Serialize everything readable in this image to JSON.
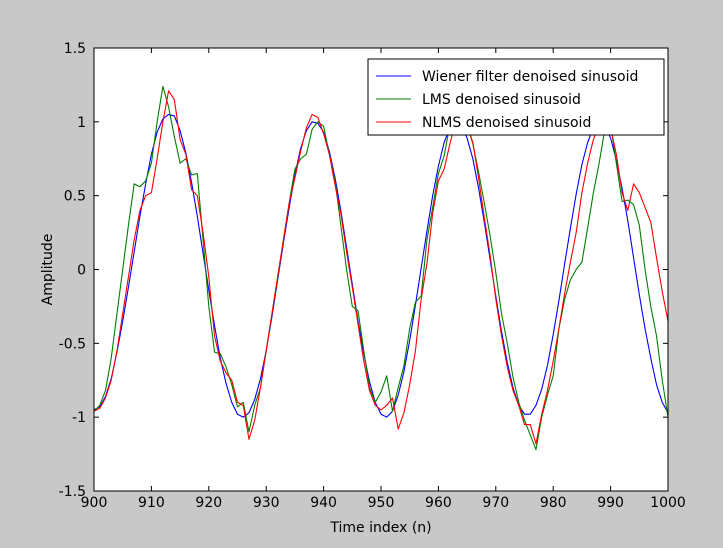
{
  "chart_data": {
    "type": "line",
    "title": "",
    "xlabel": "Time index (n)",
    "ylabel": "Amplitude",
    "xlim": [
      900,
      1000
    ],
    "ylim": [
      -1.5,
      1.5
    ],
    "xticks": [
      900,
      910,
      920,
      930,
      940,
      950,
      960,
      970,
      980,
      990,
      1000
    ],
    "xtick_labels": [
      "900",
      "910",
      "920",
      "930",
      "940",
      "950",
      "960",
      "970",
      "980",
      "990",
      "1000"
    ],
    "yticks": [
      -1.5,
      -1,
      -0.5,
      0,
      0.5,
      1,
      1.5
    ],
    "ytick_labels": [
      "-1.5",
      "-1",
      "-0.5",
      "0",
      "0.5",
      "1",
      "1.5"
    ],
    "grid": false,
    "legend_position": "top-right",
    "colors": {
      "figure_bg": "#c8c8c8",
      "axes_bg": "#ffffff"
    },
    "series": [
      {
        "name": "Wiener filter denoised sinusoid",
        "color": "#0000ff",
        "x": [
          900,
          901,
          902,
          903,
          904,
          905,
          906,
          907,
          908,
          909,
          910,
          911,
          912,
          913,
          914,
          915,
          916,
          917,
          918,
          919,
          920,
          921,
          922,
          923,
          924,
          925,
          926,
          927,
          928,
          929,
          930,
          931,
          932,
          933,
          934,
          935,
          936,
          937,
          938,
          939,
          940,
          941,
          942,
          943,
          944,
          945,
          946,
          947,
          948,
          949,
          950,
          951,
          952,
          953,
          954,
          955,
          956,
          957,
          958,
          959,
          960,
          961,
          962,
          963,
          964,
          965,
          966,
          967,
          968,
          969,
          970,
          971,
          972,
          973,
          974,
          975,
          976,
          977,
          978,
          979,
          980,
          981,
          982,
          983,
          984,
          985,
          986,
          987,
          988,
          989,
          990,
          991,
          992,
          993,
          994,
          995,
          996,
          997,
          998,
          999,
          1000
        ],
        "y": [
          -0.95,
          -0.93,
          -0.86,
          -0.74,
          -0.56,
          -0.35,
          -0.12,
          0.12,
          0.36,
          0.58,
          0.78,
          0.93,
          1.02,
          1.05,
          1.04,
          0.94,
          0.79,
          0.59,
          0.36,
          0.11,
          -0.14,
          -0.38,
          -0.6,
          -0.77,
          -0.9,
          -0.98,
          -1.0,
          -0.97,
          -0.88,
          -0.74,
          -0.55,
          -0.32,
          -0.07,
          0.18,
          0.42,
          0.64,
          0.82,
          0.94,
          1.0,
          0.99,
          0.93,
          0.8,
          0.62,
          0.4,
          0.15,
          -0.1,
          -0.35,
          -0.57,
          -0.76,
          -0.9,
          -0.98,
          -1.0,
          -0.96,
          -0.85,
          -0.69,
          -0.48,
          -0.24,
          0.01,
          0.26,
          0.5,
          0.7,
          0.86,
          0.96,
          1.0,
          0.98,
          0.89,
          0.75,
          0.55,
          0.32,
          0.07,
          -0.18,
          -0.42,
          -0.63,
          -0.8,
          -0.92,
          -0.98,
          -0.98,
          -0.92,
          -0.81,
          -0.65,
          -0.44,
          -0.21,
          0.04,
          0.28,
          0.51,
          0.71,
          0.86,
          0.96,
          1.0,
          0.97,
          0.89,
          0.74,
          0.55,
          0.33,
          0.08,
          -0.17,
          -0.4,
          -0.6,
          -0.78,
          -0.9,
          -0.97
        ]
      },
      {
        "name": "LMS denoised sinusoid",
        "color": "#008000",
        "x": [
          900,
          901,
          902,
          903,
          904,
          905,
          906,
          907,
          908,
          909,
          910,
          911,
          912,
          913,
          914,
          915,
          916,
          917,
          918,
          919,
          920,
          921,
          922,
          923,
          924,
          925,
          926,
          927,
          928,
          929,
          930,
          931,
          932,
          933,
          934,
          935,
          936,
          937,
          938,
          939,
          940,
          941,
          942,
          943,
          944,
          945,
          946,
          947,
          948,
          949,
          950,
          951,
          952,
          953,
          954,
          955,
          956,
          957,
          958,
          959,
          960,
          961,
          962,
          963,
          964,
          965,
          966,
          967,
          968,
          969,
          970,
          971,
          972,
          973,
          974,
          975,
          976,
          977,
          978,
          979,
          980,
          981,
          982,
          983,
          984,
          985,
          986,
          987,
          988,
          989,
          990,
          991,
          992,
          993,
          994,
          995,
          996,
          997,
          998,
          999,
          1000
        ],
        "y": [
          -0.96,
          -0.92,
          -0.82,
          -0.6,
          -0.3,
          0.0,
          0.3,
          0.58,
          0.56,
          0.6,
          0.72,
          1.0,
          1.24,
          1.1,
          0.9,
          0.72,
          0.75,
          0.64,
          0.65,
          0.2,
          -0.25,
          -0.56,
          -0.57,
          -0.66,
          -0.78,
          -0.93,
          -0.9,
          -1.1,
          -0.92,
          -0.8,
          -0.55,
          -0.3,
          -0.05,
          0.2,
          0.45,
          0.68,
          0.75,
          0.78,
          0.95,
          1.0,
          0.97,
          0.78,
          0.6,
          0.3,
          0.0,
          -0.25,
          -0.28,
          -0.55,
          -0.8,
          -0.9,
          -0.83,
          -0.72,
          -0.96,
          -0.8,
          -0.65,
          -0.4,
          -0.22,
          -0.18,
          0.2,
          0.42,
          0.65,
          0.77,
          0.98,
          1.04,
          1.0,
          0.98,
          0.85,
          0.66,
          0.45,
          0.23,
          -0.02,
          -0.3,
          -0.5,
          -0.73,
          -0.9,
          -1.02,
          -1.12,
          -1.22,
          -1.0,
          -0.85,
          -0.72,
          -0.4,
          -0.2,
          -0.07,
          0.0,
          0.05,
          0.28,
          0.52,
          0.72,
          0.95,
          0.98,
          0.72,
          0.46,
          0.47,
          0.44,
          0.3,
          0.0,
          -0.25,
          -0.45,
          -0.75,
          -1.0
        ]
      },
      {
        "name": "NLMS denoised sinusoid",
        "color": "#ff0000",
        "x": [
          900,
          901,
          902,
          903,
          904,
          905,
          906,
          907,
          908,
          909,
          910,
          911,
          912,
          913,
          914,
          915,
          916,
          917,
          918,
          919,
          920,
          921,
          922,
          923,
          924,
          925,
          926,
          927,
          928,
          929,
          930,
          931,
          932,
          933,
          934,
          935,
          936,
          937,
          938,
          939,
          940,
          941,
          942,
          943,
          944,
          945,
          946,
          947,
          948,
          949,
          950,
          951,
          952,
          953,
          954,
          955,
          956,
          957,
          958,
          959,
          960,
          961,
          962,
          963,
          964,
          965,
          966,
          967,
          968,
          969,
          970,
          971,
          972,
          973,
          974,
          975,
          976,
          977,
          978,
          979,
          980,
          981,
          982,
          983,
          984,
          985,
          986,
          987,
          988,
          989,
          990,
          991,
          992,
          993,
          994,
          995,
          996,
          997,
          998,
          999,
          1000
        ],
        "y": [
          -0.96,
          -0.94,
          -0.87,
          -0.75,
          -0.55,
          -0.3,
          -0.05,
          0.2,
          0.4,
          0.5,
          0.52,
          0.75,
          1.0,
          1.21,
          1.15,
          0.88,
          0.78,
          0.54,
          0.5,
          0.25,
          -0.05,
          -0.45,
          -0.62,
          -0.7,
          -0.75,
          -0.9,
          -0.92,
          -1.15,
          -1.02,
          -0.8,
          -0.55,
          -0.3,
          -0.05,
          0.2,
          0.45,
          0.62,
          0.8,
          0.96,
          1.05,
          1.03,
          0.92,
          0.78,
          0.57,
          0.38,
          0.12,
          -0.12,
          -0.37,
          -0.62,
          -0.82,
          -0.92,
          -0.95,
          -0.92,
          -0.87,
          -1.08,
          -0.97,
          -0.78,
          -0.55,
          -0.2,
          0.04,
          0.38,
          0.6,
          0.68,
          0.85,
          1.0,
          1.07,
          0.98,
          0.86,
          0.62,
          0.35,
          0.1,
          -0.2,
          -0.45,
          -0.66,
          -0.82,
          -0.92,
          -1.05,
          -1.05,
          -1.18,
          -0.98,
          -0.82,
          -0.62,
          -0.4,
          -0.16,
          0.05,
          0.25,
          0.52,
          0.72,
          0.88,
          0.98,
          1.02,
          0.96,
          0.78,
          0.52,
          0.4,
          0.58,
          0.52,
          0.42,
          0.32,
          0.08,
          -0.15,
          -0.35
        ]
      }
    ]
  }
}
